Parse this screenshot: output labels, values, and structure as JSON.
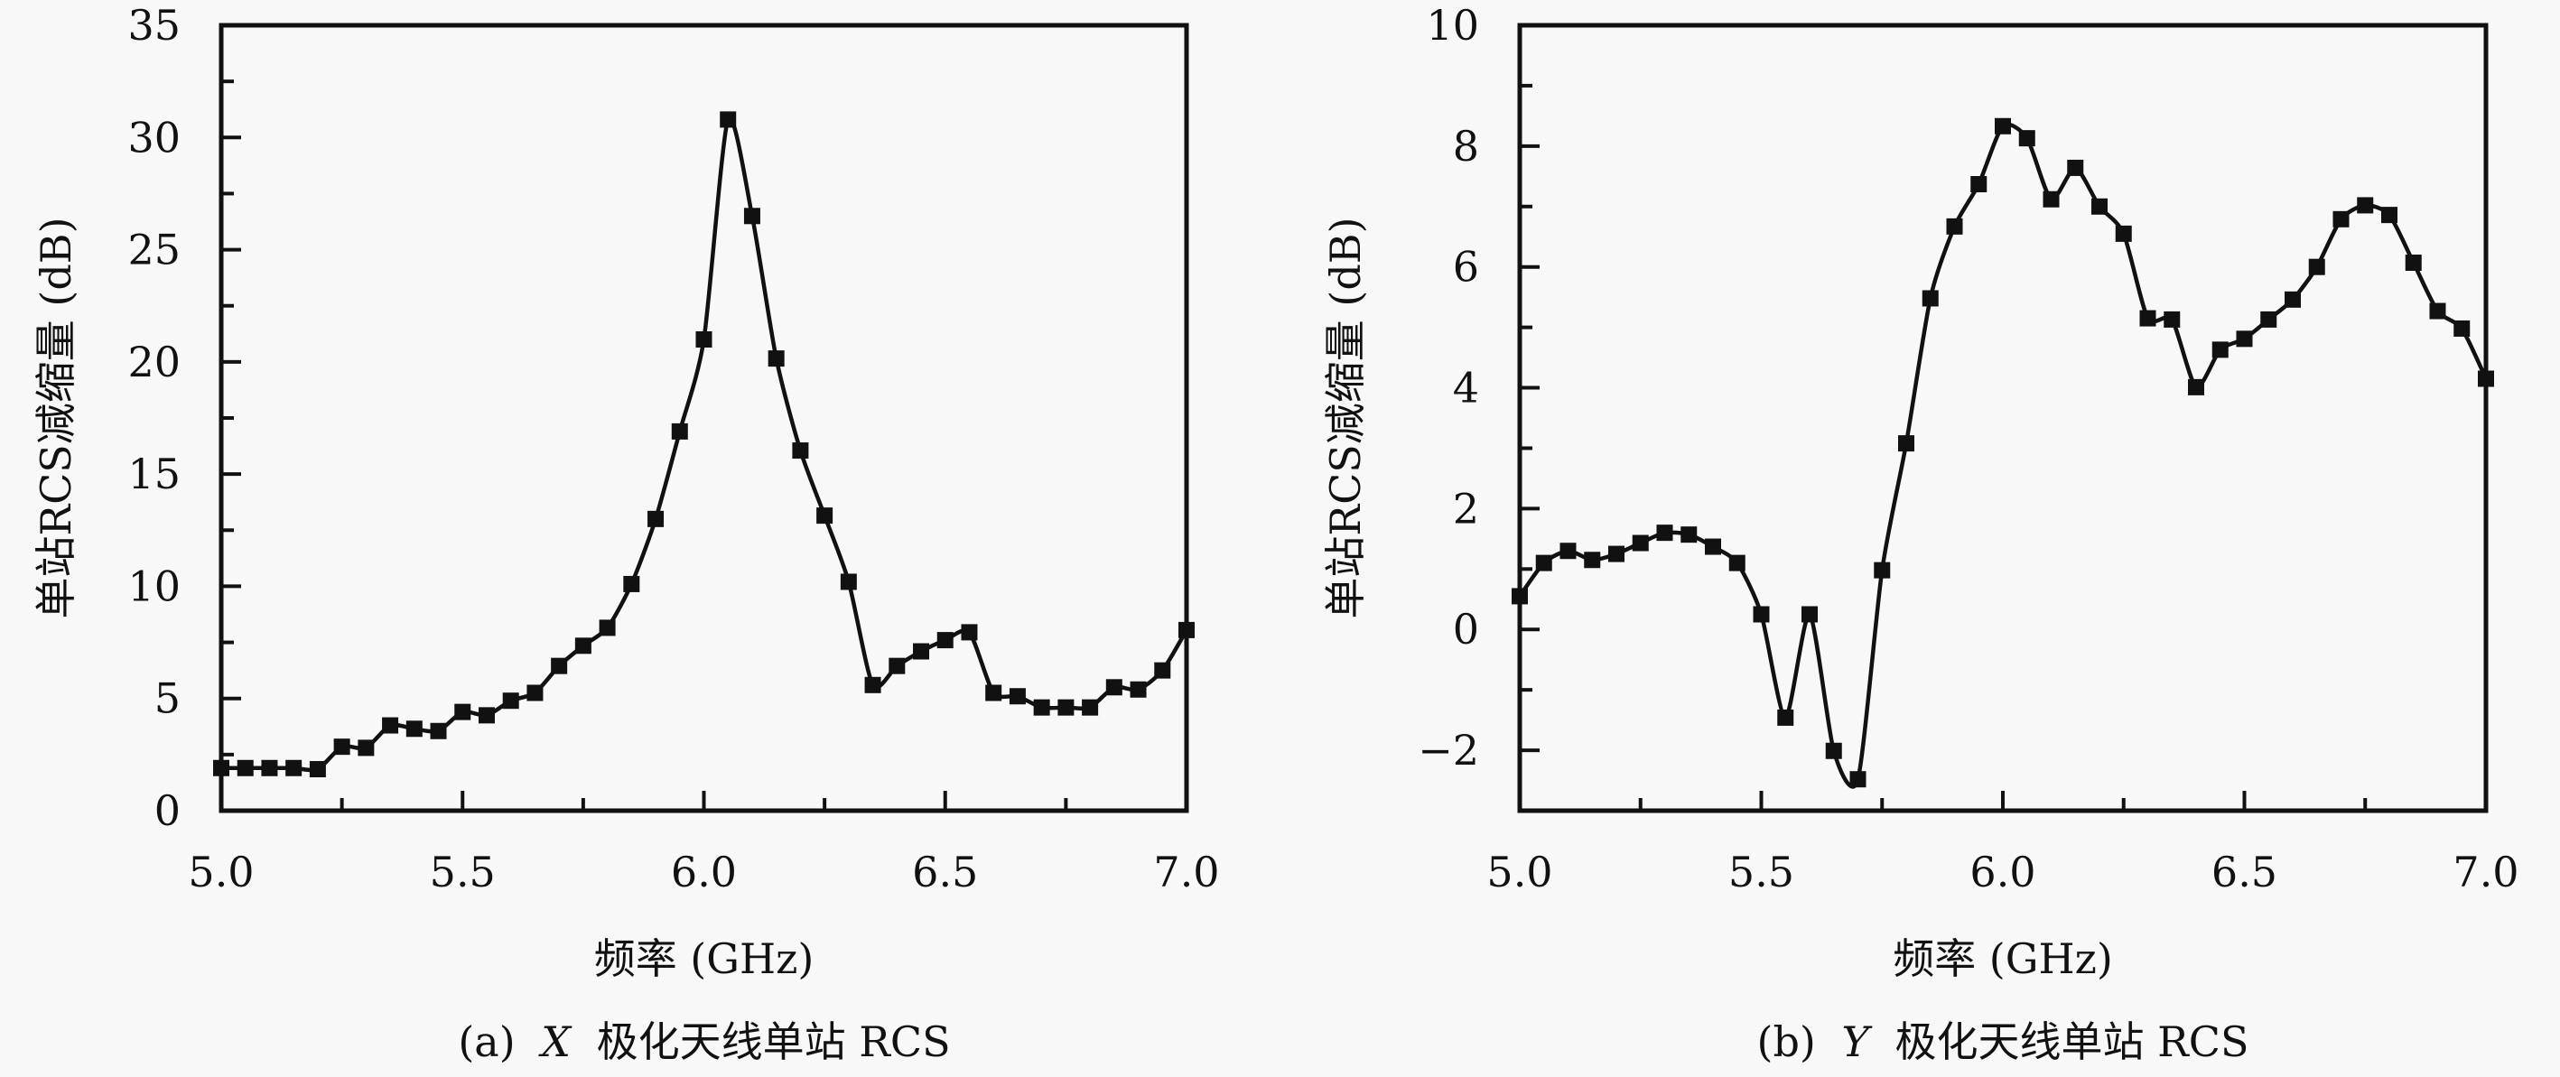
{
  "chart_data": [
    {
      "type": "line",
      "id": "a",
      "caption_prefix": "(a)",
      "caption_var": "X",
      "caption_text": "极化天线单站 RCS",
      "xlabel": "频率 (GHz)",
      "ylabel": "单站RCS减缩量 (dB)",
      "xlim": [
        5.0,
        7.0
      ],
      "ylim": [
        0,
        35
      ],
      "xticks": [
        5.0,
        5.5,
        6.0,
        6.5,
        7.0
      ],
      "xtick_labels": [
        "5.0",
        "5.5",
        "6.0",
        "6.5",
        "7.0"
      ],
      "xminor_step": 0.25,
      "yticks": [
        0,
        5,
        10,
        15,
        20,
        25,
        30,
        35
      ],
      "ytick_labels": [
        "0",
        "5",
        "10",
        "15",
        "20",
        "25",
        "30",
        "35"
      ],
      "yminor_step": 2.5,
      "grid": false,
      "marker": "square",
      "color": "#111111",
      "series": [
        {
          "name": "X",
          "x": [
            5.0,
            5.05,
            5.1,
            5.15,
            5.2,
            5.25,
            5.3,
            5.35,
            5.4,
            5.45,
            5.5,
            5.55,
            5.6,
            5.65,
            5.7,
            5.75,
            5.8,
            5.85,
            5.9,
            5.95,
            6.0,
            6.05,
            6.1,
            6.15,
            6.2,
            6.25,
            6.3,
            6.35,
            6.4,
            6.45,
            6.5,
            6.55,
            6.6,
            6.65,
            6.7,
            6.75,
            6.8,
            6.85,
            6.9,
            6.95,
            7.0
          ],
          "y": [
            1.9,
            1.9,
            1.9,
            1.9,
            1.85,
            2.85,
            2.8,
            3.8,
            3.65,
            3.55,
            4.4,
            4.25,
            4.9,
            5.25,
            6.45,
            7.35,
            8.15,
            10.1,
            13.0,
            16.9,
            21.0,
            30.8,
            26.5,
            20.15,
            16.05,
            13.15,
            10.2,
            5.6,
            6.45,
            7.1,
            7.6,
            7.95,
            5.25,
            5.1,
            4.6,
            4.6,
            4.6,
            5.5,
            5.4,
            6.25,
            8.05
          ]
        }
      ]
    },
    {
      "type": "line",
      "id": "b",
      "caption_prefix": "(b)",
      "caption_var": "Y",
      "caption_text": "极化天线单站 RCS",
      "xlabel": "频率 (GHz)",
      "ylabel": "单站RCS减缩量 (dB)",
      "xlim": [
        5.0,
        7.0
      ],
      "ylim": [
        -3,
        10
      ],
      "xticks": [
        5.0,
        5.5,
        6.0,
        6.5,
        7.0
      ],
      "xtick_labels": [
        "5.0",
        "5.5",
        "6.0",
        "6.5",
        "7.0"
      ],
      "xminor_step": 0.25,
      "yticks": [
        -2,
        0,
        2,
        4,
        6,
        8,
        10
      ],
      "ytick_labels": [
        "−2",
        "0",
        "2",
        "4",
        "6",
        "8",
        "10"
      ],
      "yminor_step": 1,
      "grid": false,
      "marker": "square",
      "color": "#111111",
      "series": [
        {
          "name": "Y",
          "x": [
            5.0,
            5.05,
            5.1,
            5.15,
            5.2,
            5.25,
            5.3,
            5.35,
            5.4,
            5.45,
            5.5,
            5.55,
            5.6,
            5.65,
            5.7,
            5.75,
            5.8,
            5.85,
            5.9,
            5.95,
            6.0,
            6.05,
            6.1,
            6.15,
            6.2,
            6.25,
            6.3,
            6.35,
            6.4,
            6.45,
            6.5,
            6.55,
            6.6,
            6.65,
            6.7,
            6.75,
            6.8,
            6.85,
            6.9,
            6.95,
            7.0
          ],
          "y": [
            0.55,
            1.1,
            1.3,
            1.15,
            1.25,
            1.43,
            1.6,
            1.57,
            1.37,
            1.1,
            0.25,
            -1.46,
            0.25,
            -2.01,
            -2.48,
            0.98,
            3.08,
            5.48,
            6.67,
            7.37,
            8.33,
            8.13,
            7.12,
            7.64,
            7.0,
            6.55,
            5.15,
            5.13,
            4.01,
            4.63,
            4.81,
            5.13,
            5.46,
            6.0,
            6.79,
            7.02,
            6.86,
            6.07,
            5.27,
            4.98,
            4.15
          ]
        }
      ]
    }
  ]
}
